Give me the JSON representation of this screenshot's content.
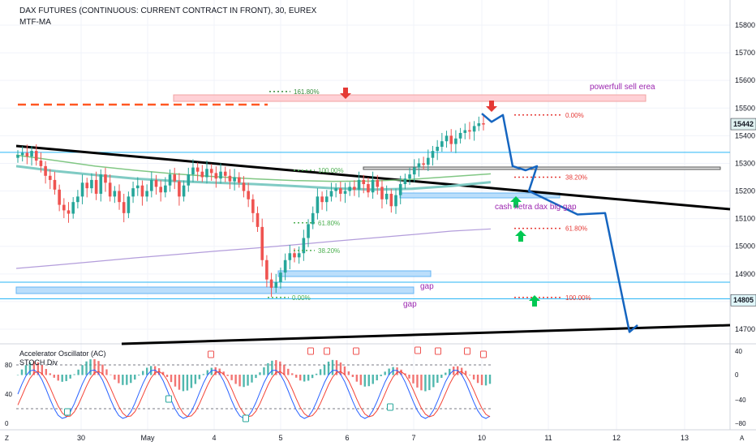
{
  "header": {
    "title": "DAX FUTURES (CONTINUOUS: CURRENT CONTRACT IN FRONT), 30, EUREX",
    "indicator": "MTF-MA"
  },
  "subpane": {
    "label1": "Accelerator Oscillator (AC)",
    "label2": "STOCH Div",
    "left_ticks": [
      "80",
      "40",
      "0"
    ],
    "right_ticks": [
      "40",
      "0",
      "−40",
      "−80"
    ]
  },
  "corner": {
    "left": "Z",
    "right": "A"
  },
  "price_labels": {
    "current": "15442",
    "support": "14805"
  },
  "annotations": {
    "sell_area": "powerfull sell erea",
    "cash_gap": "cash xetra dax big gap",
    "gap1": "gap",
    "gap2": "gap"
  },
  "fib_left": [
    {
      "label": "161.80%",
      "price": 15560,
      "color": "#388e3c"
    },
    {
      "label": "100.00%",
      "price": 15275,
      "color": "#4caf50"
    },
    {
      "label": "61.80%",
      "price": 15085,
      "color": "#4caf50"
    },
    {
      "label": "38.20%",
      "price": 14985,
      "color": "#4caf50"
    },
    {
      "label": "0.00%",
      "price": 14815,
      "color": "#4caf50"
    }
  ],
  "fib_right": [
    {
      "label": "0.00%",
      "price": 15475,
      "color": "#e53935"
    },
    {
      "label": "38.20%",
      "price": 15250,
      "color": "#e53935"
    },
    {
      "label": "61.80%",
      "price": 15065,
      "color": "#e53935"
    },
    {
      "label": "100.00%",
      "price": 14815,
      "color": "#e53935"
    }
  ],
  "colors": {
    "bull": "#26a69a",
    "bear": "#ef5350",
    "trendline": "#000000",
    "projection": "#1565c0",
    "horiz_line": "#29b6f6",
    "ma_green": "#81c784",
    "ma_teal": "#80cbc4",
    "ma_purple": "#b39ddb",
    "zone_blue": "#64b5f6",
    "zone_pink": "#ef9a9a"
  },
  "chart_data": {
    "type": "candlestick",
    "title": "DAX FUTURES (CONTINUOUS: CURRENT CONTRACT IN FRONT), 30, EUREX",
    "interval": "30",
    "y_ticks": [
      15800,
      15700,
      15600,
      15500,
      15400,
      15300,
      15200,
      15100,
      15000,
      14900,
      14800,
      14700
    ],
    "ylim": [
      14660,
      15850
    ],
    "x_ticks": [
      "30",
      "May",
      "4",
      "5",
      "6",
      "7",
      "10",
      "11",
      "12",
      "13"
    ],
    "closes": [
      15330,
      15338,
      15325,
      15345,
      15310,
      15290,
      15255,
      15240,
      15205,
      15150,
      15130,
      15118,
      15160,
      15180,
      15230,
      15210,
      15240,
      15190,
      15260,
      15230,
      15180,
      15200,
      15160,
      15120,
      15180,
      15210,
      15220,
      15180,
      15200,
      15240,
      15215,
      15195,
      15220,
      15260,
      15235,
      15180,
      15220,
      15260,
      15285,
      15270,
      15250,
      15280,
      15265,
      15245,
      15270,
      15255,
      15235,
      15250,
      15230,
      15200,
      15170,
      15120,
      15070,
      14950,
      14880,
      14850,
      14870,
      14905,
      14950,
      14975,
      14960,
      14975,
      15030,
      15080,
      15120,
      15180,
      15160,
      15180,
      15200,
      15210,
      15190,
      15200,
      15215,
      15205,
      15240,
      15225,
      15195,
      15240,
      15215,
      15170,
      15190,
      15145,
      15185,
      15225,
      15245,
      15260,
      15285,
      15300,
      15295,
      15320,
      15345,
      15360,
      15380,
      15400,
      15370,
      15390,
      15410,
      15420,
      15415,
      15435,
      15445,
      15442
    ],
    "series": [
      {
        "name": "MTF-MA green",
        "values": [
          15330,
          15310,
          15290,
          15275,
          15262,
          15252,
          15244,
          15238,
          15235,
          15236,
          15242,
          15252,
          15262
        ]
      },
      {
        "name": "MTF-MA teal",
        "values": [
          15290,
          15272,
          15258,
          15245,
          15236,
          15230,
          15225,
          15218,
          15210,
          15205,
          15208,
          15218,
          15232
        ]
      },
      {
        "name": "MTF-MA purple",
        "values": [
          14920,
          14932,
          14945,
          14958,
          14970,
          14982,
          14993,
          15005,
          15018,
          15030,
          15042,
          15055,
          15063
        ]
      }
    ],
    "horizontal_levels": [
      15340,
      14870,
      14810
    ],
    "projection_path": [
      15480,
      15450,
      15475,
      15290,
      15275,
      15290,
      15200,
      15115,
      15120,
      14690,
      14715
    ],
    "oscillator": {
      "left_ticks": [
        0,
        40,
        80
      ],
      "right_ticks": [
        40,
        0,
        -40,
        -80
      ]
    }
  }
}
